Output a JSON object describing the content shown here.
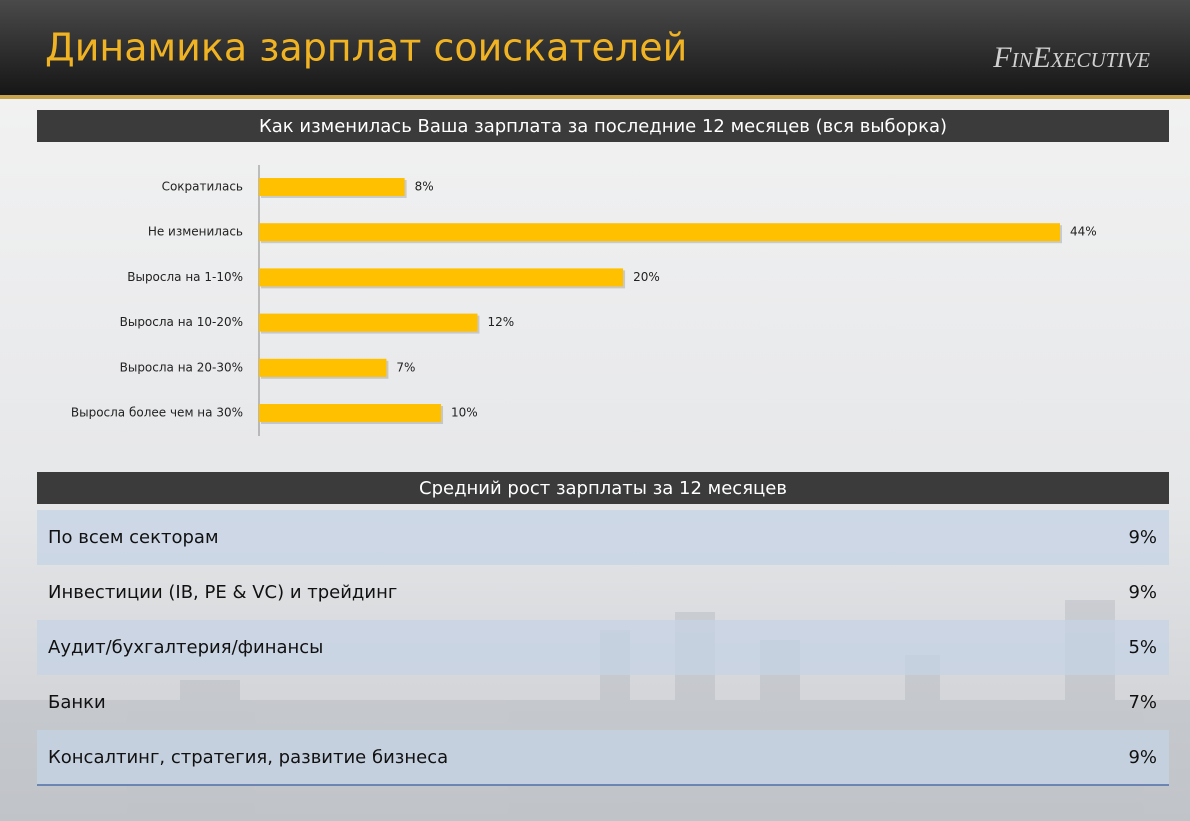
{
  "header": {
    "title": "Динамика зарплат соискателей",
    "logo": "FinExecutive"
  },
  "chart_data": {
    "type": "bar",
    "orientation": "horizontal",
    "title": "Как изменилась Ваша зарплата за последние 12 месяцев (вся выборка)",
    "categories": [
      "Сократилась",
      "Не изменилась",
      "Выросла на 1-10%",
      "Выросла на 10-20%",
      "Выросла на 20-30%",
      "Выросла более чем на 30%"
    ],
    "values": [
      8,
      44,
      20,
      12,
      7,
      10
    ],
    "value_labels": [
      "8%",
      "44%",
      "20%",
      "12%",
      "7%",
      "10%"
    ],
    "color": "#ffc000"
  },
  "table": {
    "title": "Средний рост зарплаты за 12 месяцев",
    "rows": [
      [
        "По всем секторам",
        "9%"
      ],
      [
        "Инвестиции (IB, PE & VC) и трейдинг",
        "9%"
      ],
      [
        "Аудит/бухгалтерия/финансы",
        "5%"
      ],
      [
        "Банки",
        "7%"
      ],
      [
        "Консалтинг, стратегия, развитие бизнеса",
        "9%"
      ]
    ]
  }
}
